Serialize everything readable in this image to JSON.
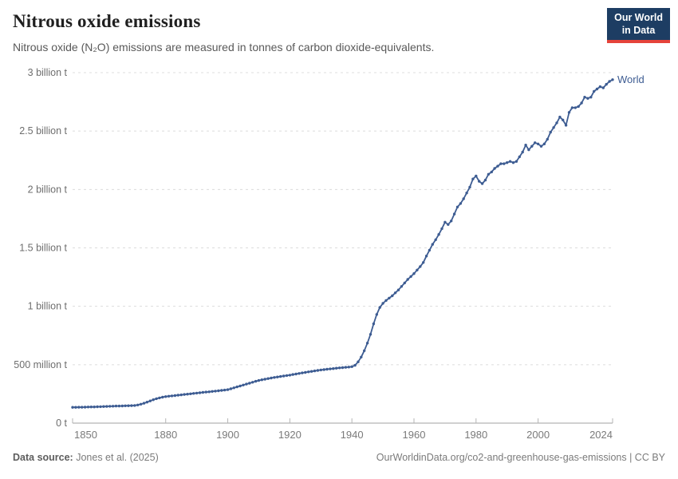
{
  "header": {
    "title": "Nitrous oxide emissions",
    "subtitle": "Nitrous oxide (N₂O) emissions are measured in tonnes of carbon dioxide-equivalents.",
    "logo": {
      "line1": "Our World",
      "line2": "in Data",
      "bg_color": "#1d3d63",
      "accent_color": "#e5433a"
    }
  },
  "chart_data": {
    "type": "line",
    "title": "Nitrous oxide emissions",
    "unit": "tonnes of carbon dioxide-equivalents",
    "grid": "horizontal-dashed",
    "legend_position": "end-of-line-label",
    "xlim": [
      1850,
      2024
    ],
    "ylim": [
      0,
      3
    ],
    "x_ticks": [
      1850,
      1880,
      1900,
      1920,
      1940,
      1960,
      1980,
      2000,
      2024
    ],
    "y_ticks": [
      {
        "value": 0,
        "label": "0 t"
      },
      {
        "value": 0.5,
        "label": "500 million t"
      },
      {
        "value": 1,
        "label": "1 billion t"
      },
      {
        "value": 1.5,
        "label": "1.5 billion t"
      },
      {
        "value": 2,
        "label": "2 billion t"
      },
      {
        "value": 2.5,
        "label": "2.5 billion t"
      },
      {
        "value": 3,
        "label": "3 billion t"
      }
    ],
    "y_unit_of_values": "billion tonnes CO2e",
    "end_label": "World",
    "series": [
      {
        "name": "World",
        "color": "#3d5c92",
        "x_start": 1850,
        "x_step": 1,
        "values": [
          0.135,
          0.135,
          0.136,
          0.136,
          0.137,
          0.138,
          0.139,
          0.139,
          0.14,
          0.141,
          0.142,
          0.143,
          0.144,
          0.145,
          0.146,
          0.146,
          0.147,
          0.148,
          0.149,
          0.15,
          0.151,
          0.155,
          0.162,
          0.17,
          0.18,
          0.19,
          0.2,
          0.209,
          0.216,
          0.222,
          0.227,
          0.23,
          0.233,
          0.236,
          0.239,
          0.242,
          0.245,
          0.248,
          0.251,
          0.254,
          0.257,
          0.26,
          0.263,
          0.266,
          0.268,
          0.271,
          0.274,
          0.277,
          0.28,
          0.283,
          0.286,
          0.294,
          0.302,
          0.31,
          0.318,
          0.326,
          0.334,
          0.342,
          0.35,
          0.358,
          0.365,
          0.371,
          0.376,
          0.381,
          0.386,
          0.391,
          0.395,
          0.399,
          0.403,
          0.407,
          0.411,
          0.416,
          0.42,
          0.425,
          0.43,
          0.434,
          0.439,
          0.443,
          0.447,
          0.451,
          0.455,
          0.458,
          0.461,
          0.464,
          0.467,
          0.47,
          0.473,
          0.475,
          0.478,
          0.48,
          0.483,
          0.495,
          0.525,
          0.565,
          0.62,
          0.685,
          0.76,
          0.85,
          0.93,
          0.99,
          1.025,
          1.05,
          1.07,
          1.09,
          1.115,
          1.14,
          1.17,
          1.2,
          1.23,
          1.255,
          1.28,
          1.31,
          1.34,
          1.375,
          1.43,
          1.48,
          1.53,
          1.57,
          1.615,
          1.665,
          1.72,
          1.7,
          1.73,
          1.79,
          1.85,
          1.88,
          1.92,
          1.97,
          2.02,
          2.09,
          2.115,
          2.07,
          2.05,
          2.08,
          2.13,
          2.15,
          2.18,
          2.2,
          2.22,
          2.22,
          2.23,
          2.24,
          2.23,
          2.24,
          2.28,
          2.32,
          2.38,
          2.34,
          2.37,
          2.4,
          2.39,
          2.37,
          2.39,
          2.43,
          2.49,
          2.53,
          2.57,
          2.62,
          2.595,
          2.55,
          2.66,
          2.7,
          2.7,
          2.71,
          2.74,
          2.79,
          2.78,
          2.79,
          2.84,
          2.86,
          2.88,
          2.87,
          2.9,
          2.925,
          2.94
        ]
      }
    ]
  },
  "footer": {
    "source_label": "Data source:",
    "source_value": "Jones et al. (2025)",
    "license_text": "OurWorldinData.org/co2-and-greenhouse-gas-emissions | CC BY"
  }
}
